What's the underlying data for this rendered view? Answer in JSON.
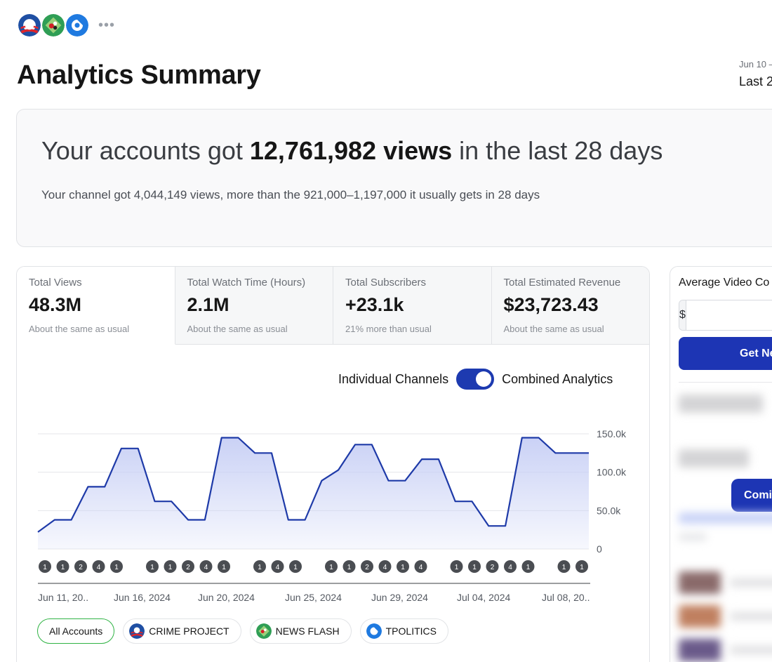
{
  "header": {
    "title": "Analytics Summary",
    "date_range": "Jun 10 –",
    "date_preset": "Last 2"
  },
  "accounts_logos": [
    "crime-project-logo",
    "news-flash-logo",
    "tpolitics-logo"
  ],
  "hero": {
    "headline_prefix": "Your accounts got ",
    "headline_value": "12,761,982 views",
    "headline_suffix": " in the last 28 days",
    "subtext": "Your channel got 4,044,149 views, more than the 921,000–1,197,000 it usually gets in 28 days"
  },
  "stats": [
    {
      "label": "Total Views",
      "value": "48.3M",
      "note": "About the same as usual"
    },
    {
      "label": "Total Watch Time (Hours)",
      "value": "2.1M",
      "note": "About the same as usual"
    },
    {
      "label": "Total Subscribers",
      "value": "+23.1k",
      "note": "21% more than usual"
    },
    {
      "label": "Total Estimated Revenue",
      "value": "$23,723.43",
      "note": "About the same as usual"
    }
  ],
  "toggle": {
    "left_label": "Individual Channels",
    "right_label": "Combined Analytics",
    "state": "combined"
  },
  "chart_data": {
    "type": "area",
    "y_ticks": [
      "0",
      "50.0k",
      "100.0k",
      "150.0k"
    ],
    "ylim": [
      0,
      150000
    ],
    "x_tick_labels": [
      "Jun 11, 20..",
      "Jun 16, 2024",
      "Jun 20, 2024",
      "Jun 25, 2024",
      "Jun 29, 2024",
      "Jul 04, 2024",
      "Jul 08, 20.."
    ],
    "series": [
      {
        "values": [
          22000,
          38000,
          38000,
          81000,
          81000,
          131000,
          131000,
          62000,
          62000,
          38000,
          38000,
          145000,
          145000,
          125000,
          125000,
          38000,
          38000,
          89000,
          103000,
          136000,
          136000,
          89000,
          89000,
          117000,
          117000,
          62000,
          62000,
          30000,
          30000,
          145000,
          145000,
          125000,
          125000,
          125000
        ]
      }
    ],
    "grid": true,
    "color": "#1e3aa8",
    "fill_color": "#c7cff5",
    "post_markers": [
      "1",
      "1",
      "2",
      "4",
      "1",
      "",
      "1",
      "1",
      "2",
      "4",
      "1",
      "",
      "1",
      "4",
      "1",
      "",
      "1",
      "1",
      "2",
      "4",
      "1",
      "4",
      "",
      "1",
      "1",
      "2",
      "4",
      "1",
      "",
      "1",
      "1"
    ]
  },
  "filters": [
    {
      "label": "All Accounts",
      "active": true,
      "logo": ""
    },
    {
      "label": "CRIME PROJECT",
      "active": false,
      "logo": "crime-project-logo"
    },
    {
      "label": "NEWS FLASH",
      "active": false,
      "logo": "news-flash-logo"
    },
    {
      "label": "TPOLITICS",
      "active": false,
      "logo": "tpolitics-logo"
    }
  ],
  "side_panel": {
    "title": "Average Video Co",
    "currency_prefix": "$",
    "input_value": "",
    "button_label": "Get Ne",
    "secondary_button_label": "Comi"
  }
}
